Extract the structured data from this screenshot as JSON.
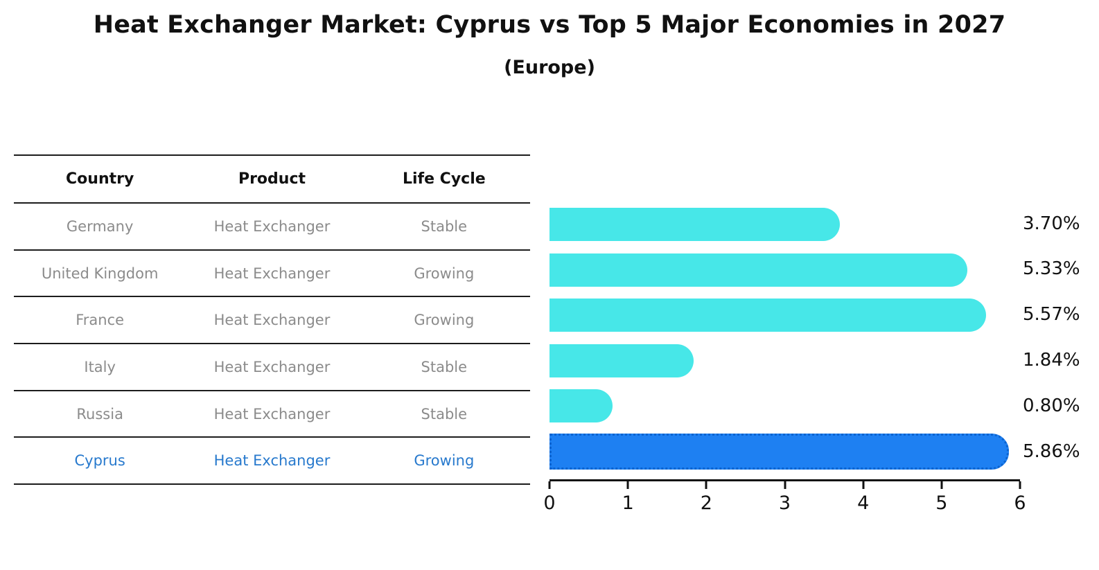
{
  "title": "Heat Exchanger Market: Cyprus vs Top 5 Major Economies in 2027",
  "subtitle": "(Europe)",
  "table": {
    "headers": [
      "Country",
      "Product",
      "Life Cycle"
    ],
    "rows": [
      {
        "country": "Germany",
        "product": "Heat Exchanger",
        "life_cycle": "Stable",
        "value_label": "3.70%"
      },
      {
        "country": "United Kingdom",
        "product": "Heat Exchanger",
        "life_cycle": "Growing",
        "value_label": "5.33%"
      },
      {
        "country": "France",
        "product": "Heat Exchanger",
        "life_cycle": "Growing",
        "value_label": "5.57%"
      },
      {
        "country": "Italy",
        "product": "Heat Exchanger",
        "life_cycle": "Stable",
        "value_label": "1.84%"
      },
      {
        "country": "Russia",
        "product": "Heat Exchanger",
        "life_cycle": "Stable",
        "value_label": "0.80%"
      },
      {
        "country": "Cyprus",
        "product": "Heat Exchanger",
        "life_cycle": "Growing",
        "value_label": "5.86%"
      }
    ]
  },
  "chart_data": {
    "type": "bar",
    "orientation": "horizontal",
    "title": "Heat Exchanger Market: Cyprus vs Top 5 Major Economies in 2027 (Europe)",
    "categories": [
      "Germany",
      "United Kingdom",
      "France",
      "Italy",
      "Russia",
      "Cyprus"
    ],
    "values": [
      3.7,
      5.33,
      5.57,
      1.84,
      0.8,
      5.86
    ],
    "value_labels": [
      "3.70%",
      "5.33%",
      "5.57%",
      "1.84%",
      "0.80%",
      "5.86%"
    ],
    "unit": "percent",
    "xlabel": "",
    "ylabel": "",
    "xlim": [
      0,
      6
    ],
    "xticks": [
      0,
      1,
      2,
      3,
      4,
      5,
      6
    ],
    "grid": false,
    "legend": false,
    "bar_color": "#47e7e8",
    "highlight_color": "#1e80f2",
    "highlight_border_color": "#0b63cf",
    "highlight_index": 5,
    "highlight_text_color": "#2779cd"
  }
}
